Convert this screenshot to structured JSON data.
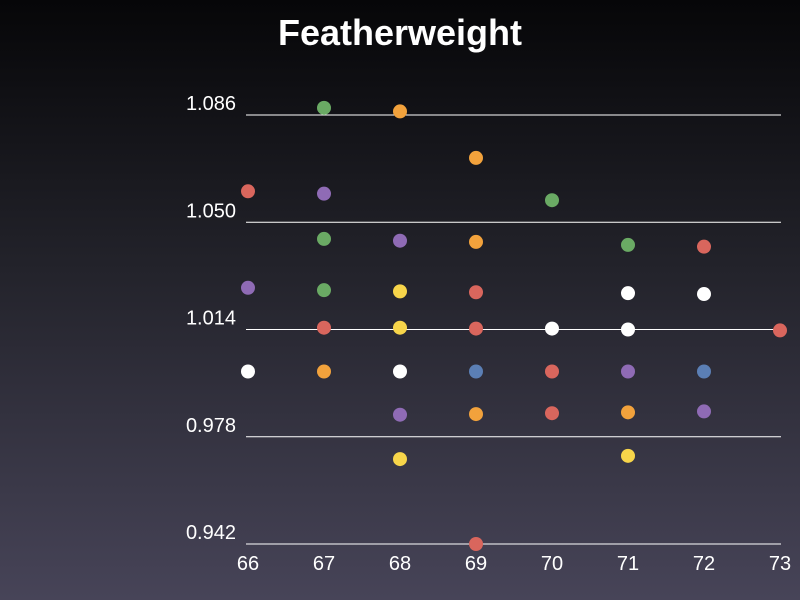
{
  "chart_data": {
    "type": "scatter",
    "title": "Featherweight",
    "xlabel": "",
    "ylabel": "",
    "xlim": [
      66,
      73
    ],
    "ylim": [
      0.942,
      1.086
    ],
    "x_ticks": [
      "66",
      "67",
      "68",
      "69",
      "70",
      "71",
      "72",
      "73"
    ],
    "y_ticks": [
      "0.942",
      "0.978",
      "1.014",
      "1.050",
      "1.086"
    ],
    "grid": "horizontal",
    "legend": "none",
    "points": [
      {
        "x": 66,
        "y": 1.0604,
        "color": "#d9665d"
      },
      {
        "x": 66,
        "y": 1.028,
        "color": "#8f6bb5"
      },
      {
        "x": 66,
        "y": 0.9999,
        "color": "#ffffff"
      },
      {
        "x": 67,
        "y": 1.0884,
        "color": "#6aaa64"
      },
      {
        "x": 67,
        "y": 1.0596,
        "color": "#8f6bb5"
      },
      {
        "x": 67,
        "y": 1.0444,
        "color": "#6aaa64"
      },
      {
        "x": 67,
        "y": 1.0272,
        "color": "#6aaa64"
      },
      {
        "x": 67,
        "y": 1.0146,
        "color": "#d9665d"
      },
      {
        "x": 67,
        "y": 0.9999,
        "color": "#f2a23c"
      },
      {
        "x": 68,
        "y": 1.0872,
        "color": "#f2a23c"
      },
      {
        "x": 68,
        "y": 1.0438,
        "color": "#8f6bb5"
      },
      {
        "x": 68,
        "y": 1.0268,
        "color": "#f7d54a"
      },
      {
        "x": 68,
        "y": 1.0146,
        "color": "#f7d54a"
      },
      {
        "x": 68,
        "y": 0.9999,
        "color": "#ffffff"
      },
      {
        "x": 68,
        "y": 0.9854,
        "color": "#8f6bb5"
      },
      {
        "x": 68,
        "y": 0.9705,
        "color": "#f7d54a"
      },
      {
        "x": 69,
        "y": 1.0716,
        "color": "#f2a23c"
      },
      {
        "x": 69,
        "y": 1.0434,
        "color": "#f2a23c"
      },
      {
        "x": 69,
        "y": 1.0265,
        "color": "#d9665d"
      },
      {
        "x": 69,
        "y": 1.0143,
        "color": "#d9665d"
      },
      {
        "x": 69,
        "y": 0.9999,
        "color": "#5b7fb5"
      },
      {
        "x": 69,
        "y": 0.9856,
        "color": "#f2a23c"
      },
      {
        "x": 69,
        "y": 0.942,
        "color": "#d9665d"
      },
      {
        "x": 70,
        "y": 1.0574,
        "color": "#6aaa64"
      },
      {
        "x": 70,
        "y": 1.0143,
        "color": "#ffffff"
      },
      {
        "x": 70,
        "y": 0.9999,
        "color": "#d9665d"
      },
      {
        "x": 70,
        "y": 0.9859,
        "color": "#d9665d"
      },
      {
        "x": 71,
        "y": 1.0424,
        "color": "#6aaa64"
      },
      {
        "x": 71,
        "y": 1.0262,
        "color": "#ffffff"
      },
      {
        "x": 71,
        "y": 1.014,
        "color": "#ffffff"
      },
      {
        "x": 71,
        "y": 0.9999,
        "color": "#8f6bb5"
      },
      {
        "x": 71,
        "y": 0.9862,
        "color": "#f2a23c"
      },
      {
        "x": 71,
        "y": 0.9716,
        "color": "#f7d54a"
      },
      {
        "x": 72,
        "y": 1.0418,
        "color": "#d9665d"
      },
      {
        "x": 72,
        "y": 1.0259,
        "color": "#ffffff"
      },
      {
        "x": 72,
        "y": 0.9999,
        "color": "#5b7fb5"
      },
      {
        "x": 72,
        "y": 0.9865,
        "color": "#8f6bb5"
      },
      {
        "x": 73,
        "y": 1.0137,
        "color": "#d9665d"
      }
    ]
  }
}
